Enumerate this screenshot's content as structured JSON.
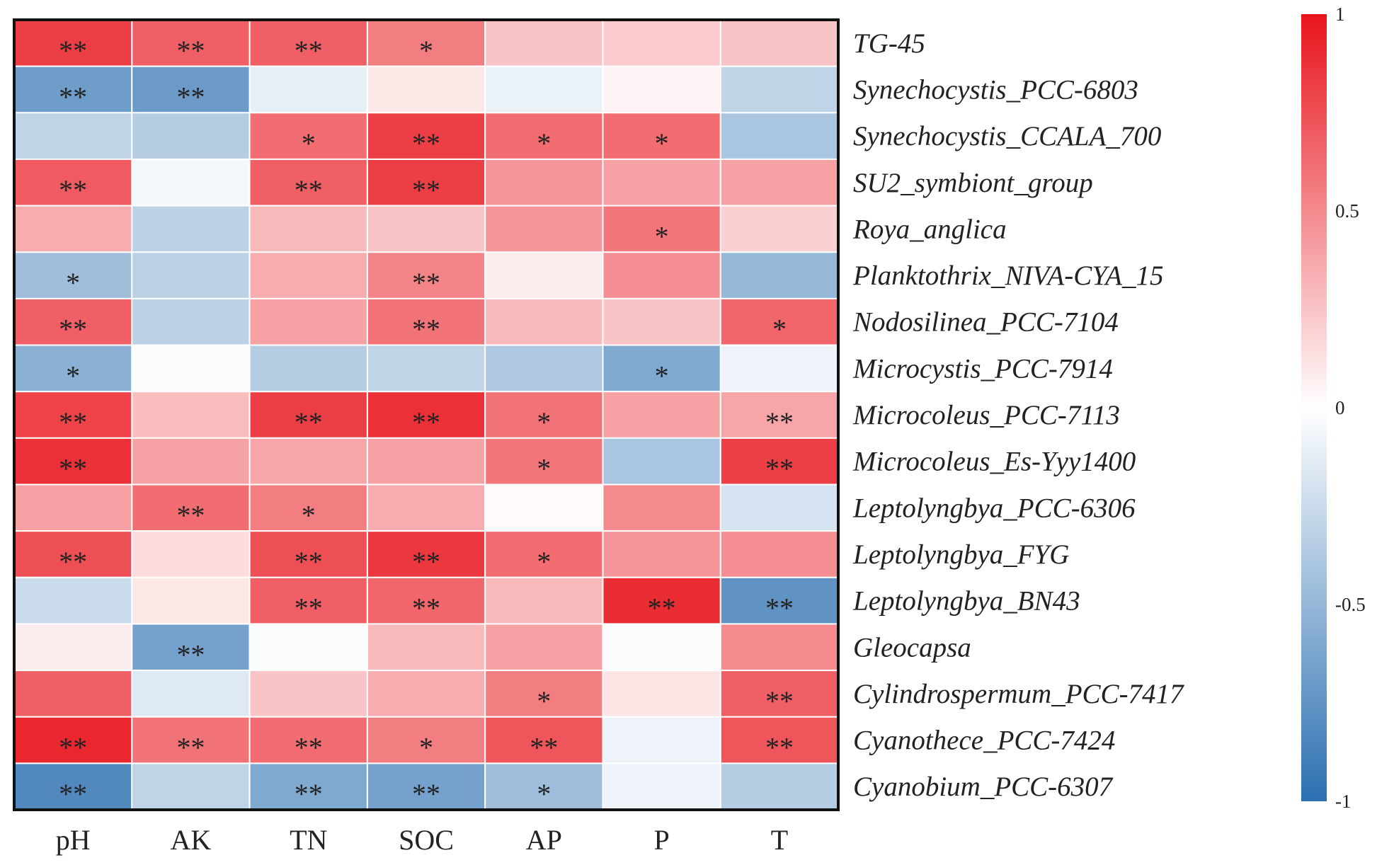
{
  "chart_data": {
    "type": "heatmap",
    "title": "",
    "columns": [
      "pH",
      "AK",
      "TN",
      "SOC",
      "AP",
      "P",
      "T"
    ],
    "rows": [
      "TG-45",
      "Synechocystis_PCC-6803",
      "Synechocystis_CCALA_700",
      "SU2_symbiont_group",
      "Roya_anglica",
      "Planktothrix_NIVA-CYA_15",
      "Nodosilinea_PCC-7104",
      "Microcystis_PCC-7914",
      "Microcoleus_PCC-7113",
      "Microcoleus_Es-Yyy1400",
      "Leptolyngbya_PCC-6306",
      "Leptolyngbya_FYG",
      "Leptolyngbya_BN43",
      "Gleocapsa",
      "Cylindrospermum_PCC-7417",
      "Cyanothece_PCC-7424",
      "Cyanobium_PCC-6307"
    ],
    "values": [
      [
        0.82,
        0.68,
        0.68,
        0.55,
        0.25,
        0.22,
        0.25
      ],
      [
        -0.68,
        -0.7,
        -0.12,
        0.1,
        -0.1,
        0.05,
        -0.3
      ],
      [
        -0.3,
        -0.35,
        0.62,
        0.82,
        0.62,
        0.62,
        -0.4
      ],
      [
        0.7,
        -0.05,
        0.68,
        0.82,
        0.45,
        0.4,
        0.4
      ],
      [
        0.35,
        -0.32,
        0.3,
        0.25,
        0.45,
        0.58,
        0.2
      ],
      [
        -0.45,
        -0.32,
        0.35,
        0.52,
        0.08,
        0.48,
        -0.5
      ],
      [
        0.68,
        -0.32,
        0.4,
        0.6,
        0.3,
        0.25,
        0.65
      ],
      [
        -0.55,
        -0.02,
        -0.35,
        -0.3,
        -0.38,
        -0.6,
        -0.08
      ],
      [
        0.8,
        0.28,
        0.82,
        0.88,
        0.6,
        0.4,
        0.38
      ],
      [
        0.88,
        0.4,
        0.38,
        0.4,
        0.58,
        -0.4,
        0.82
      ],
      [
        0.4,
        0.62,
        0.55,
        0.35,
        0.02,
        0.5,
        -0.2
      ],
      [
        0.75,
        0.15,
        0.75,
        0.85,
        0.62,
        0.45,
        0.48
      ],
      [
        -0.25,
        0.1,
        0.68,
        0.65,
        0.3,
        0.9,
        -0.75
      ],
      [
        0.08,
        -0.65,
        -0.02,
        0.3,
        0.4,
        -0.02,
        0.5
      ],
      [
        0.68,
        -0.15,
        0.25,
        0.35,
        0.55,
        0.12,
        0.68
      ],
      [
        0.92,
        0.6,
        0.62,
        0.55,
        0.72,
        -0.08,
        0.72
      ],
      [
        -0.82,
        -0.3,
        -0.6,
        -0.65,
        -0.45,
        -0.08,
        -0.35
      ]
    ],
    "significance": [
      [
        "**",
        "**",
        "**",
        "*",
        "",
        "",
        ""
      ],
      [
        "**",
        "**",
        "",
        "",
        "",
        "",
        ""
      ],
      [
        "",
        "",
        "*",
        "**",
        "*",
        "*",
        ""
      ],
      [
        "**",
        "",
        "**",
        "**",
        "",
        "",
        ""
      ],
      [
        "",
        "",
        "",
        "",
        "",
        "*",
        ""
      ],
      [
        "*",
        "",
        "",
        "**",
        "",
        "",
        ""
      ],
      [
        "**",
        "",
        "",
        "**",
        "",
        "",
        "*"
      ],
      [
        "*",
        "",
        "",
        "",
        "",
        "*",
        ""
      ],
      [
        "**",
        "",
        "**",
        "**",
        "*",
        "",
        "**"
      ],
      [
        "**",
        "",
        "",
        "",
        "*",
        "",
        "**"
      ],
      [
        "",
        "**",
        "*",
        "",
        "",
        "",
        ""
      ],
      [
        "**",
        "",
        "**",
        "**",
        "*",
        "",
        ""
      ],
      [
        "",
        "",
        "**",
        "**",
        "",
        "**",
        "**"
      ],
      [
        "",
        "**",
        "",
        "",
        "",
        "",
        ""
      ],
      [
        "",
        "",
        "",
        "",
        "*",
        "",
        "**"
      ],
      [
        "**",
        "**",
        "**",
        "*",
        "**",
        "",
        "**"
      ],
      [
        "**",
        "",
        "**",
        "**",
        "*",
        "",
        ""
      ]
    ],
    "colorbar": {
      "range": [
        -1,
        1
      ],
      "ticks": [
        1,
        0.5,
        0,
        -0.5,
        -1
      ],
      "tick_labels": [
        "1",
        "0.5",
        "0",
        "-0.5",
        "-1"
      ],
      "colors": {
        "high": "#e8141c",
        "mid": "#ffffff",
        "low": "#2b6fb0"
      }
    },
    "xlabel": "",
    "ylabel": ""
  }
}
